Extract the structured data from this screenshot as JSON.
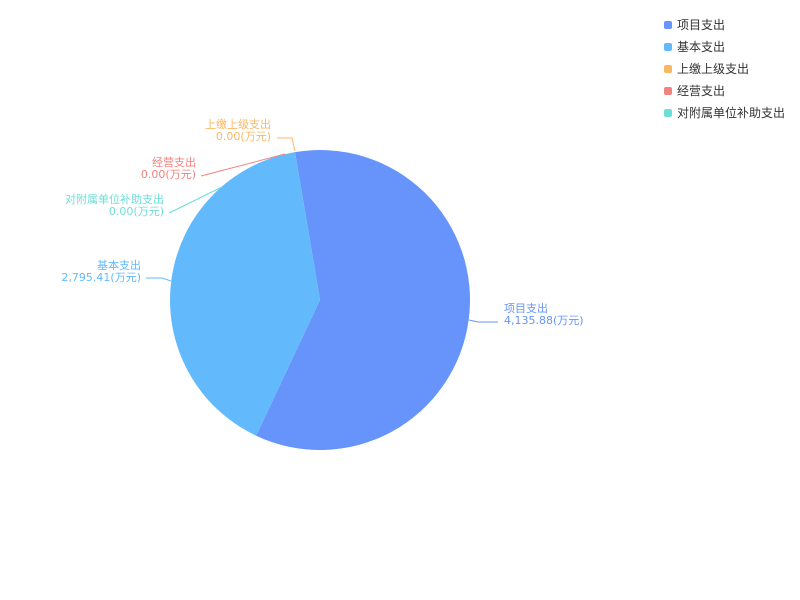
{
  "chart_data": {
    "type": "pie",
    "unit": "(万元)",
    "legend_position": "top-right",
    "slices": [
      {
        "name": "项目支出",
        "value": 4135.88,
        "label_value": "4,135.88",
        "color": "#6694fb"
      },
      {
        "name": "基本支出",
        "value": 2795.41,
        "label_value": "2,795.41",
        "color": "#62bafd"
      },
      {
        "name": "上缴上级支出",
        "value": 0,
        "label_value": "0.00",
        "color": "#fcb765"
      },
      {
        "name": "经营支出",
        "value": 0,
        "label_value": "0.00",
        "color": "#f2837f"
      },
      {
        "name": "对附属单位补助支出",
        "value": 0,
        "label_value": "0.00",
        "color": "#6cded8"
      }
    ]
  }
}
